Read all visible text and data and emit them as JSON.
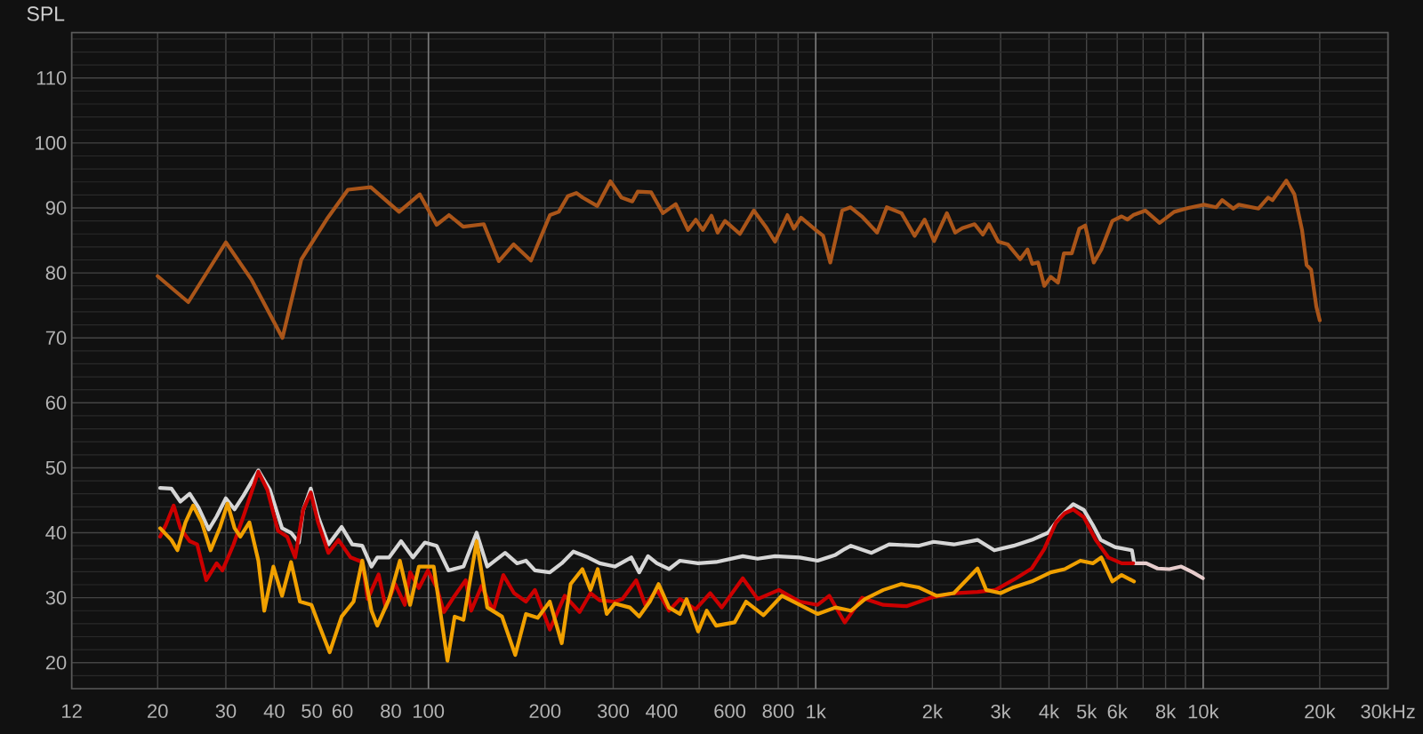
{
  "chart_data": {
    "type": "line",
    "ylabel": "SPL",
    "xlabel": "Hz",
    "log": "x",
    "grid": true,
    "xlim": [
      12,
      30000
    ],
    "ylim": [
      16,
      117
    ],
    "xticks": [
      12,
      20,
      30,
      40,
      50,
      60,
      {
        "value": 70,
        "label": null
      },
      80,
      {
        "value": 90,
        "label": null
      },
      100,
      200,
      300,
      400,
      {
        "value": 500,
        "label": null
      },
      600,
      {
        "value": 700,
        "label": null
      },
      800,
      {
        "value": 900,
        "label": null
      },
      {
        "value": 1000,
        "label": "1k"
      },
      {
        "value": 2000,
        "label": "2k"
      },
      {
        "value": 3000,
        "label": "3k"
      },
      {
        "value": 4000,
        "label": "4k"
      },
      {
        "value": 5000,
        "label": "5k"
      },
      {
        "value": 6000,
        "label": "6k"
      },
      {
        "value": 7000,
        "label": null
      },
      {
        "value": 8000,
        "label": "8k"
      },
      {
        "value": 9000,
        "label": null
      },
      {
        "value": 10000,
        "label": "10k"
      },
      {
        "value": 20000,
        "label": "20k"
      },
      {
        "value": 30000,
        "label": "30k"
      }
    ],
    "yticks": [
      {
        "value": 18,
        "label": null
      },
      20,
      {
        "value": 22,
        "label": null
      },
      {
        "value": 24,
        "label": null
      },
      {
        "value": 26,
        "label": null
      },
      {
        "value": 28,
        "label": null
      },
      30,
      {
        "value": 32,
        "label": null
      },
      {
        "value": 34,
        "label": null
      },
      {
        "value": 36,
        "label": null
      },
      {
        "value": 38,
        "label": null
      },
      40,
      {
        "value": 42,
        "label": null
      },
      {
        "value": 44,
        "label": null
      },
      {
        "value": 46,
        "label": null
      },
      {
        "value": 48,
        "label": null
      },
      50,
      {
        "value": 52,
        "label": null
      },
      {
        "value": 54,
        "label": null
      },
      {
        "value": 56,
        "label": null
      },
      {
        "value": 58,
        "label": null
      },
      60,
      {
        "value": 62,
        "label": null
      },
      {
        "value": 64,
        "label": null
      },
      {
        "value": 66,
        "label": null
      },
      {
        "value": 68,
        "label": null
      },
      70,
      {
        "value": 72,
        "label": null
      },
      {
        "value": 74,
        "label": null
      },
      {
        "value": 76,
        "label": null
      },
      {
        "value": 78,
        "label": null
      },
      80,
      {
        "value": 82,
        "label": null
      },
      {
        "value": 84,
        "label": null
      },
      {
        "value": 86,
        "label": null
      },
      {
        "value": 88,
        "label": null
      },
      90,
      {
        "value": 92,
        "label": null
      },
      {
        "value": 94,
        "label": null
      },
      {
        "value": 96,
        "label": null
      },
      {
        "value": 98,
        "label": null
      },
      100,
      {
        "value": 102,
        "label": null
      },
      {
        "value": 104,
        "label": null
      },
      {
        "value": 106,
        "label": null
      },
      {
        "value": 108,
        "label": null
      },
      110,
      {
        "value": 112,
        "label": null
      },
      {
        "value": 114,
        "label": null
      },
      {
        "value": 116,
        "label": null
      }
    ],
    "series": [
      {
        "color": "#aa5519",
        "x": [
          20,
          24,
          30,
          35,
          42,
          47,
          55,
          62,
          71,
          84,
          95,
          105,
          113,
          123,
          139,
          152,
          166,
          184,
          206,
          217,
          229,
          241,
          250,
          273,
          295,
          315,
          336,
          347,
          376,
          403,
          435,
          468,
          490,
          511,
          538,
          558,
          583,
          637,
          692,
          743,
          785,
          845,
          878,
          916,
          1000,
          1045,
          1090,
          1170,
          1230,
          1320,
          1440,
          1525,
          1665,
          1800,
          1910,
          2020,
          2180,
          2290,
          2390,
          2570,
          2700,
          2800,
          2960,
          3130,
          3370,
          3520,
          3620,
          3750,
          3890,
          4040,
          4220,
          4370,
          4580,
          4790,
          4960,
          5220,
          5460,
          5830,
          6160,
          6380,
          6600,
          7090,
          7720,
          8420,
          9160,
          10050,
          10800,
          11200,
          11960,
          12360,
          13900,
          14710,
          15100,
          16400,
          17200,
          18000,
          18500,
          19000,
          19600,
          20000
        ],
        "values": [
          79.5,
          75.5,
          84.7,
          78.9,
          70.0,
          82.1,
          88.5,
          92.8,
          93.2,
          89.4,
          92.1,
          87.4,
          88.9,
          87.1,
          87.5,
          81.8,
          84.4,
          81.9,
          88.9,
          89.4,
          91.8,
          92.3,
          91.6,
          90.3,
          94.1,
          91.6,
          91.0,
          92.5,
          92.4,
          89.2,
          90.6,
          86.6,
          88.2,
          86.6,
          88.8,
          86.2,
          88.0,
          86.0,
          89.6,
          87.1,
          84.8,
          88.9,
          86.8,
          88.5,
          86.6,
          85.7,
          81.6,
          89.6,
          90.1,
          88.6,
          86.2,
          90.1,
          89.2,
          85.7,
          88.2,
          84.9,
          89.2,
          86.2,
          86.9,
          87.5,
          85.9,
          87.5,
          84.8,
          84.4,
          82.1,
          83.6,
          81.4,
          81.6,
          78.0,
          79.4,
          78.5,
          83.0,
          83.0,
          86.8,
          87.3,
          81.6,
          83.6,
          88.0,
          88.7,
          88.2,
          88.9,
          89.6,
          87.7,
          89.4,
          90.0,
          90.5,
          90.1,
          91.2,
          89.9,
          90.5,
          89.9,
          91.6,
          91.2,
          94.2,
          92.1,
          86.6,
          81.2,
          80.5,
          74.8,
          72.7
        ]
      },
      {
        "color": "#e6cccc",
        "x": [
          6630,
          7130,
          7630,
          8180,
          8780,
          9410,
          9990
        ],
        "values": [
          35.3,
          35.3,
          34.5,
          34.4,
          34.8,
          33.9,
          33.0
        ]
      },
      {
        "color": "#d6d6d6",
        "x": [
          20.3,
          21.7,
          22.9,
          24.2,
          25.5,
          27.1,
          28.4,
          30.0,
          31.6,
          33.3,
          36.4,
          39.0,
          41.9,
          44.2,
          46.3,
          47.5,
          49.7,
          51.9,
          55.2,
          59.7,
          63.6,
          67.5,
          71.3,
          73.8,
          79.2,
          85.0,
          91.2,
          97.9,
          105,
          112.7,
          123.2,
          133.2,
          141.9,
          157.8,
          169.4,
          178.6,
          188.4,
          205.8,
          220.9,
          236.7,
          258.4,
          276.8,
          302.9,
          334,
          350,
          369,
          389,
          418,
          446,
          497,
          553,
          648,
          708,
          785,
          909,
          1011,
          1124,
          1188,
          1232,
          1393,
          1547,
          1841,
          2015,
          2272,
          2615,
          2890,
          3240,
          3610,
          3980,
          4270,
          4620,
          4920,
          5190,
          5440,
          5920,
          6550,
          6630
        ],
        "values": [
          46.9,
          46.8,
          44.8,
          46.0,
          43.9,
          40.5,
          42.5,
          45.3,
          43.6,
          45.7,
          49.6,
          46.6,
          40.7,
          40.0,
          38.5,
          43.5,
          46.8,
          42.5,
          38.2,
          40.9,
          38.2,
          38.0,
          34.8,
          36.2,
          36.2,
          38.7,
          36.2,
          38.5,
          38.0,
          34.2,
          34.8,
          40.0,
          34.8,
          36.9,
          35.3,
          35.7,
          34.2,
          33.9,
          35.3,
          37.1,
          36.2,
          35.3,
          34.8,
          36.2,
          33.9,
          36.4,
          35.3,
          34.4,
          35.7,
          35.3,
          35.5,
          36.4,
          36.0,
          36.4,
          36.2,
          35.7,
          36.6,
          37.5,
          38.0,
          36.9,
          38.2,
          38.0,
          38.6,
          38.2,
          38.9,
          37.3,
          38.0,
          38.9,
          40.0,
          42.4,
          44.4,
          43.5,
          41.2,
          38.9,
          37.8,
          37.3,
          35.5
        ]
      },
      {
        "color": "#cc0000",
        "x": [
          20.3,
          21.0,
          22.0,
          22.9,
          24.2,
          25.3,
          26.7,
          28.4,
          29.4,
          31.4,
          33.3,
          36.4,
          38.4,
          40.9,
          43.2,
          45.3,
          47.5,
          49.7,
          51.9,
          55.2,
          58.6,
          63.0,
          67.5,
          69.7,
          74.4,
          77.6,
          82.1,
          86.9,
          89.7,
          94.5,
          99.7,
          105,
          109.7,
          116.9,
          124.8,
          129.0,
          137.1,
          147.1,
          156.1,
          166.4,
          178.6,
          188.4,
          205.8,
          224.9,
          245.7,
          262.1,
          276.8,
          302.9,
          317,
          344,
          363,
          389,
          418,
          446,
          489,
          534,
          572,
          648,
          708,
          803,
          909,
          1011,
          1084,
          1188,
          1317,
          1494,
          1714,
          1978,
          2272,
          2615,
          2910,
          3290,
          3610,
          3890,
          4170,
          4390,
          4620,
          4920,
          5280,
          5690,
          6160,
          6600
        ],
        "values": [
          39.4,
          41.2,
          44.2,
          40.7,
          38.7,
          38.2,
          32.7,
          35.3,
          34.2,
          38.2,
          42.5,
          49.4,
          46.6,
          40.3,
          39.4,
          36.2,
          43.5,
          46.2,
          41.6,
          36.9,
          38.9,
          36.2,
          35.5,
          29.8,
          33.6,
          28.5,
          32.1,
          28.9,
          33.9,
          31.5,
          34.2,
          31.6,
          27.8,
          30.3,
          32.7,
          28.0,
          31.8,
          28.0,
          33.5,
          30.7,
          29.4,
          31.2,
          25.1,
          30.3,
          27.8,
          30.7,
          29.6,
          29.4,
          29.8,
          32.7,
          28.9,
          31.2,
          28.0,
          29.8,
          28.2,
          30.7,
          28.5,
          33.0,
          29.8,
          31.2,
          29.4,
          28.9,
          30.3,
          26.2,
          30.0,
          28.9,
          28.7,
          30.0,
          30.7,
          30.9,
          31.2,
          33.0,
          34.5,
          37.5,
          41.6,
          43.0,
          43.6,
          42.4,
          38.9,
          36.2,
          35.3,
          35.3
        ]
      },
      {
        "color": "#f0a000",
        "x": [
          20.3,
          21.7,
          22.5,
          23.6,
          24.7,
          26.0,
          27.4,
          29.0,
          30.3,
          31.6,
          32.7,
          34.5,
          36.4,
          37.7,
          39.8,
          41.9,
          44.2,
          46.6,
          49.9,
          51.9,
          55.6,
          59.7,
          64.1,
          67.5,
          71.3,
          73.8,
          79.2,
          84.4,
          89.7,
          94.5,
          103.2,
          112.0,
          116.9,
          123.2,
          133.2,
          141.9,
          154.9,
          167.6,
          178.6,
          191.6,
          205.8,
          220.9,
          232.9,
          249.7,
          262.1,
          273.6,
          288.6,
          302.9,
          331,
          350,
          373,
          393,
          418,
          446,
          464,
          497,
          523,
          553,
          617,
          661,
          733,
          817,
          909,
          1011,
          1124,
          1232,
          1340,
          1494,
          1663,
          1841,
          2049,
          2272,
          2615,
          2754,
          3000,
          3240,
          3610,
          4040,
          4390,
          4820,
          5190,
          5460,
          5830,
          6160,
          6630
        ],
        "values": [
          40.7,
          38.9,
          37.3,
          41.6,
          44.2,
          41.6,
          37.3,
          40.9,
          44.5,
          40.7,
          39.4,
          41.6,
          35.7,
          28.0,
          34.8,
          30.3,
          35.5,
          29.4,
          28.9,
          26.2,
          21.6,
          27.1,
          29.4,
          35.7,
          28.0,
          25.7,
          29.8,
          35.7,
          28.9,
          34.8,
          34.8,
          20.3,
          27.1,
          26.6,
          38.7,
          28.5,
          27.1,
          21.2,
          27.5,
          26.9,
          29.4,
          23.0,
          32.1,
          34.4,
          31.2,
          34.4,
          27.5,
          29.1,
          28.5,
          27.1,
          29.4,
          32.1,
          28.5,
          27.5,
          29.8,
          24.8,
          28.0,
          25.7,
          26.2,
          29.4,
          27.3,
          30.3,
          28.9,
          27.5,
          28.5,
          28.0,
          29.8,
          31.2,
          32.1,
          31.6,
          30.3,
          30.7,
          34.5,
          31.2,
          30.7,
          31.6,
          32.5,
          33.9,
          34.4,
          35.7,
          35.3,
          36.2,
          32.5,
          33.5,
          32.5
        ]
      }
    ]
  }
}
